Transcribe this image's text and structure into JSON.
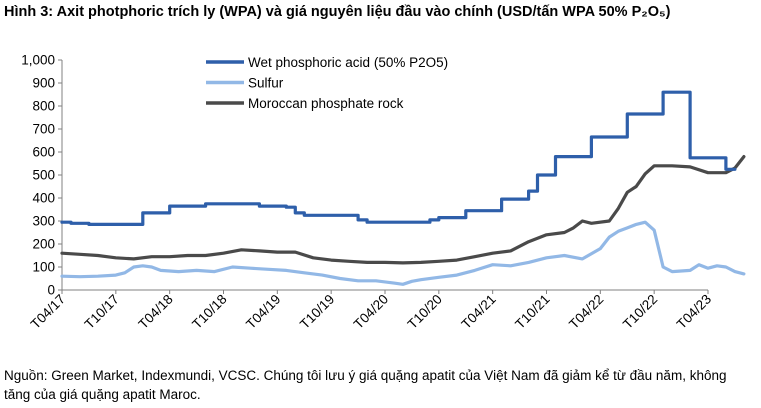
{
  "title": "Hình 3: Axit photphoric trích ly (WPA) và giá nguyên liệu đầu vào chính (USD/tấn WPA 50% P₂O₅)",
  "footnote": "Nguồn: Green Market, Indexmundi, VCSC. Chúng tôi lưu ý giá quặng apatit của Việt Nam đã giảm kể từ đầu năm, không tăng của giá quặng apatit Maroc.",
  "colors": {
    "wpa": "#2E5FAA",
    "sulfur": "#92B8E6",
    "rock": "#4A4A4A",
    "axis": "#808080"
  },
  "chart_data": {
    "type": "line",
    "title": "",
    "xlabel": "",
    "ylabel": "",
    "ylim": [
      0,
      1000
    ],
    "yticks": [
      "0",
      "100",
      "200",
      "300",
      "400",
      "500",
      "600",
      "700",
      "800",
      "900",
      "1,000"
    ],
    "xlim": [
      "2017-04",
      "2023-04"
    ],
    "xticks": [
      "T04/17",
      "T10/17",
      "T04/18",
      "T10/18",
      "T04/19",
      "T10/19",
      "T04/20",
      "T10/20",
      "T04/21",
      "T10/21",
      "T04/22",
      "T10/22",
      "T04/23"
    ],
    "legend_position": "top-left",
    "grid": false,
    "series": [
      {
        "name": "Wet phosphoric acid (50% P2O5)",
        "color": "#2E5FAA",
        "step": true,
        "points": [
          [
            "2017-04",
            295
          ],
          [
            "2017-05",
            290
          ],
          [
            "2017-07",
            285
          ],
          [
            "2017-08",
            285
          ],
          [
            "2017-12",
            285
          ],
          [
            "2018-01",
            335
          ],
          [
            "2018-03",
            335
          ],
          [
            "2018-04",
            365
          ],
          [
            "2018-07",
            365
          ],
          [
            "2018-08",
            375
          ],
          [
            "2019-01",
            375
          ],
          [
            "2019-02",
            365
          ],
          [
            "2019-05",
            360
          ],
          [
            "2019-06",
            335
          ],
          [
            "2019-07",
            325
          ],
          [
            "2019-12",
            325
          ],
          [
            "2020-01",
            305
          ],
          [
            "2020-02",
            295
          ],
          [
            "2020-08",
            295
          ],
          [
            "2020-09",
            305
          ],
          [
            "2020-10",
            315
          ],
          [
            "2020-12",
            315
          ],
          [
            "2021-01",
            345
          ],
          [
            "2021-04",
            345
          ],
          [
            "2021-05",
            395
          ],
          [
            "2021-07",
            395
          ],
          [
            "2021-08",
            430
          ],
          [
            "2021-09",
            500
          ],
          [
            "2021-10",
            500
          ],
          [
            "2021-11",
            580
          ],
          [
            "2022-02",
            580
          ],
          [
            "2022-03",
            665
          ],
          [
            "2022-06",
            665
          ],
          [
            "2022-07",
            765
          ],
          [
            "2022-10",
            765
          ],
          [
            "2022-11",
            860
          ],
          [
            "2023-01",
            860
          ],
          [
            "2023-02",
            575
          ],
          [
            "2023-05",
            575
          ],
          [
            "2023-06",
            525
          ],
          [
            "2023-07",
            525
          ]
        ]
      },
      {
        "name": "Sulfur",
        "color": "#92B8E6",
        "step": false,
        "points": [
          [
            "2017-04",
            60
          ],
          [
            "2017-06",
            58
          ],
          [
            "2017-08",
            60
          ],
          [
            "2017-10",
            65
          ],
          [
            "2017-11",
            75
          ],
          [
            "2017-12",
            100
          ],
          [
            "2018-01",
            105
          ],
          [
            "2018-02",
            100
          ],
          [
            "2018-03",
            85
          ],
          [
            "2018-05",
            80
          ],
          [
            "2018-07",
            85
          ],
          [
            "2018-09",
            80
          ],
          [
            "2018-11",
            100
          ],
          [
            "2019-01",
            95
          ],
          [
            "2019-03",
            90
          ],
          [
            "2019-05",
            85
          ],
          [
            "2019-07",
            75
          ],
          [
            "2019-09",
            65
          ],
          [
            "2019-11",
            50
          ],
          [
            "2020-01",
            40
          ],
          [
            "2020-03",
            40
          ],
          [
            "2020-05",
            30
          ],
          [
            "2020-06",
            25
          ],
          [
            "2020-07",
            38
          ],
          [
            "2020-08",
            45
          ],
          [
            "2020-10",
            55
          ],
          [
            "2020-12",
            65
          ],
          [
            "2021-02",
            85
          ],
          [
            "2021-04",
            110
          ],
          [
            "2021-06",
            105
          ],
          [
            "2021-08",
            120
          ],
          [
            "2021-10",
            140
          ],
          [
            "2021-12",
            150
          ],
          [
            "2022-02",
            135
          ],
          [
            "2022-04",
            180
          ],
          [
            "2022-05",
            230
          ],
          [
            "2022-06",
            255
          ],
          [
            "2022-07",
            270
          ],
          [
            "2022-08",
            285
          ],
          [
            "2022-09",
            295
          ],
          [
            "2022-10",
            260
          ],
          [
            "2022-11",
            100
          ],
          [
            "2022-12",
            80
          ],
          [
            "2023-02",
            85
          ],
          [
            "2023-03",
            110
          ],
          [
            "2023-04",
            95
          ],
          [
            "2023-05",
            105
          ],
          [
            "2023-06",
            100
          ],
          [
            "2023-07",
            80
          ],
          [
            "2023-08",
            70
          ]
        ]
      },
      {
        "name": "Moroccan phosphate rock",
        "color": "#4A4A4A",
        "step": false,
        "points": [
          [
            "2017-04",
            160
          ],
          [
            "2017-06",
            155
          ],
          [
            "2017-08",
            150
          ],
          [
            "2017-10",
            140
          ],
          [
            "2017-12",
            135
          ],
          [
            "2018-02",
            145
          ],
          [
            "2018-04",
            145
          ],
          [
            "2018-06",
            150
          ],
          [
            "2018-08",
            150
          ],
          [
            "2018-10",
            160
          ],
          [
            "2018-12",
            175
          ],
          [
            "2019-02",
            170
          ],
          [
            "2019-04",
            165
          ],
          [
            "2019-06",
            165
          ],
          [
            "2019-08",
            140
          ],
          [
            "2019-10",
            130
          ],
          [
            "2019-12",
            125
          ],
          [
            "2020-02",
            120
          ],
          [
            "2020-04",
            120
          ],
          [
            "2020-06",
            118
          ],
          [
            "2020-08",
            120
          ],
          [
            "2020-10",
            125
          ],
          [
            "2020-12",
            130
          ],
          [
            "2021-02",
            145
          ],
          [
            "2021-04",
            160
          ],
          [
            "2021-06",
            170
          ],
          [
            "2021-08",
            210
          ],
          [
            "2021-10",
            240
          ],
          [
            "2021-12",
            250
          ],
          [
            "2022-01",
            270
          ],
          [
            "2022-02",
            300
          ],
          [
            "2022-03",
            290
          ],
          [
            "2022-05",
            300
          ],
          [
            "2022-06",
            355
          ],
          [
            "2022-07",
            425
          ],
          [
            "2022-08",
            450
          ],
          [
            "2022-09",
            505
          ],
          [
            "2022-10",
            540
          ],
          [
            "2022-12",
            540
          ],
          [
            "2023-02",
            535
          ],
          [
            "2023-04",
            510
          ],
          [
            "2023-05",
            510
          ],
          [
            "2023-06",
            510
          ],
          [
            "2023-07",
            530
          ],
          [
            "2023-08",
            580
          ]
        ]
      }
    ]
  }
}
